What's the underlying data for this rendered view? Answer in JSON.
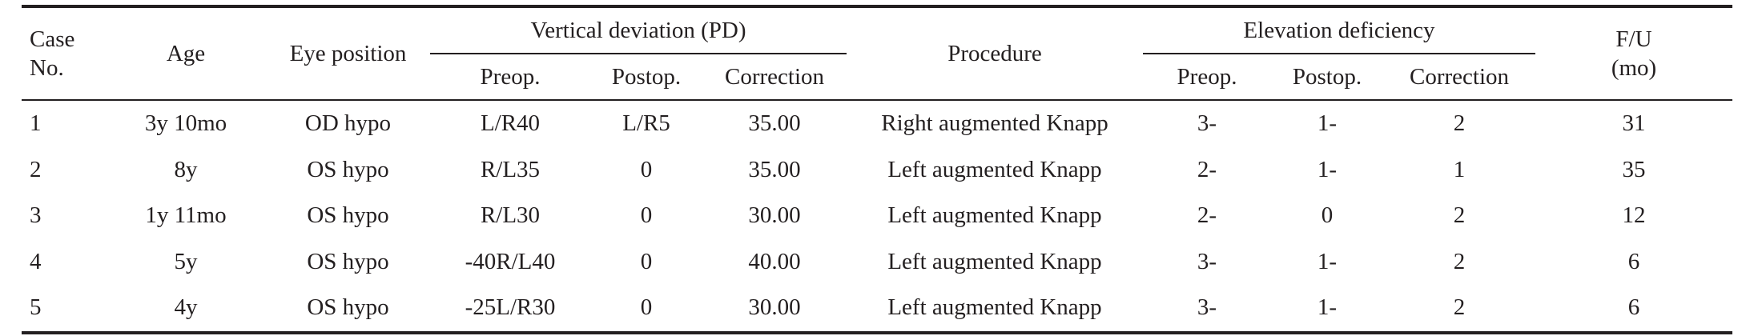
{
  "headers": {
    "case_no": [
      "Case",
      "No."
    ],
    "age": "Age",
    "eye_position": "Eye position",
    "vertical_deviation": "Vertical deviation (PD)",
    "procedure": "Procedure",
    "elevation_deficiency": "Elevation deficiency",
    "fu": [
      "F/U",
      "(mo)"
    ],
    "preop": "Preop.",
    "postop": "Postop.",
    "correction": "Correction"
  },
  "rows": [
    {
      "case": "1",
      "age": "3y 10mo",
      "eye": "OD hypo",
      "vd_preop": "L/R40",
      "vd_postop": "L/R5",
      "vd_corr": "35.00",
      "procedure": "Right augmented Knapp",
      "ed_preop": "3-",
      "ed_postop": "1-",
      "ed_corr": "2",
      "fu": "31"
    },
    {
      "case": "2",
      "age": "8y",
      "eye": "OS hypo",
      "vd_preop": "R/L35",
      "vd_postop": "0",
      "vd_corr": "35.00",
      "procedure": "Left augmented Knapp",
      "ed_preop": "2-",
      "ed_postop": "1-",
      "ed_corr": "1",
      "fu": "35"
    },
    {
      "case": "3",
      "age": "1y 11mo",
      "eye": "OS hypo",
      "vd_preop": "R/L30",
      "vd_postop": "0",
      "vd_corr": "30.00",
      "procedure": "Left augmented Knapp",
      "ed_preop": "2-",
      "ed_postop": "0",
      "ed_corr": "2",
      "fu": "12"
    },
    {
      "case": "4",
      "age": "5y",
      "eye": "OS hypo",
      "vd_preop": "-40R/L40",
      "vd_postop": "0",
      "vd_corr": "40.00",
      "procedure": "Left augmented Knapp",
      "ed_preop": "3-",
      "ed_postop": "1-",
      "ed_corr": "2",
      "fu": "6"
    },
    {
      "case": "5",
      "age": "4y",
      "eye": "OS hypo",
      "vd_preop": "-25L/R30",
      "vd_postop": "0",
      "vd_corr": "30.00",
      "procedure": "Left augmented Knapp",
      "ed_preop": "3-",
      "ed_postop": "1-",
      "ed_corr": "2",
      "fu": "6"
    }
  ]
}
